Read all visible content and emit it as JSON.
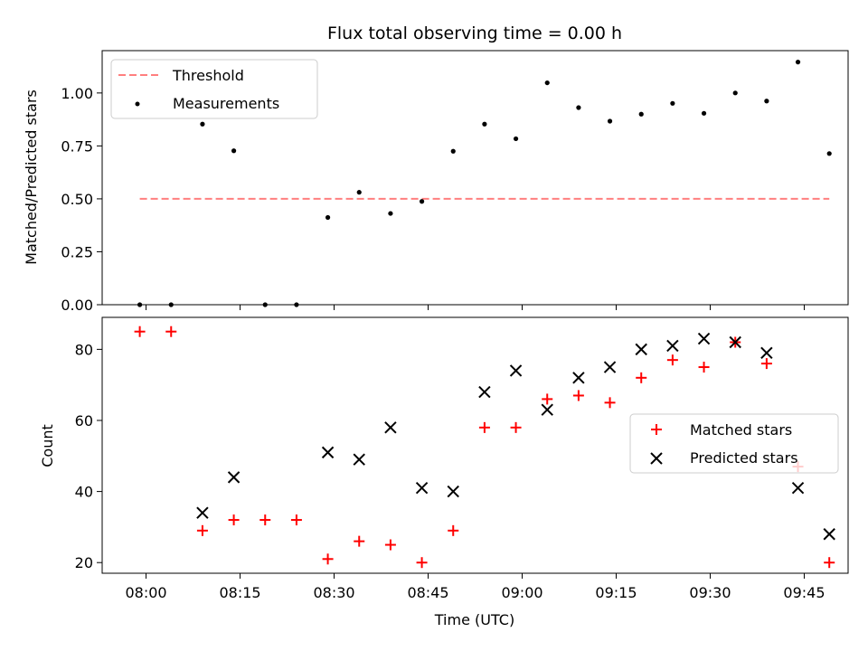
{
  "chart_data": [
    {
      "type": "scatter",
      "title": "Flux total observing time = 0.00 h",
      "xlabel": "",
      "ylabel": "Matched/Predicted stars",
      "ylim": [
        0,
        1.2
      ],
      "yticks": [
        "0.00",
        "0.25",
        "0.50",
        "0.75",
        "1.00"
      ],
      "grid": false,
      "legend_position": "upper-left",
      "threshold": {
        "name": "Threshold",
        "value": 0.5,
        "x_start": "07:59",
        "x_end": "09:49",
        "color": "#ff7f7f",
        "style": "dashed"
      },
      "series": [
        {
          "name": "Measurements",
          "marker": "dot",
          "color": "#000000",
          "x": [
            "07:59",
            "08:04",
            "08:09",
            "08:14",
            "08:19",
            "08:24",
            "08:29",
            "08:34",
            "08:39",
            "08:44",
            "08:49",
            "08:54",
            "08:59",
            "09:04",
            "09:09",
            "09:14",
            "09:19",
            "09:24",
            "09:29",
            "09:34",
            "09:39",
            "09:44",
            "09:49"
          ],
          "y": [
            0.0,
            0.0,
            0.853,
            0.727,
            0.0,
            0.0,
            0.412,
            0.531,
            0.431,
            0.488,
            0.725,
            0.853,
            0.784,
            1.048,
            0.931,
            0.867,
            0.9,
            0.951,
            0.904,
            1.0,
            0.962,
            1.146,
            0.714
          ]
        }
      ]
    },
    {
      "type": "scatter",
      "title": "",
      "xlabel": "Time (UTC)",
      "ylabel": "Count",
      "ylim": [
        17,
        89
      ],
      "yticks": [
        "20",
        "40",
        "60",
        "80"
      ],
      "xlim": [
        "07:53",
        "09:52"
      ],
      "xticks": [
        "08:00",
        "08:15",
        "08:30",
        "08:45",
        "09:00",
        "09:15",
        "09:30",
        "09:45"
      ],
      "grid": false,
      "legend_position": "center-right",
      "series": [
        {
          "name": "Matched stars",
          "marker": "plus",
          "color": "#ff0000",
          "x": [
            "07:59",
            "08:04",
            "08:09",
            "08:14",
            "08:19",
            "08:24",
            "08:29",
            "08:34",
            "08:39",
            "08:44",
            "08:49",
            "08:54",
            "08:59",
            "09:04",
            "09:09",
            "09:14",
            "09:19",
            "09:24",
            "09:29",
            "09:34",
            "09:39",
            "09:44",
            "09:49"
          ],
          "y": [
            85,
            85,
            29,
            32,
            32,
            32,
            21,
            26,
            25,
            20,
            29,
            58,
            58,
            66,
            67,
            65,
            72,
            77,
            75,
            82,
            76,
            47,
            20
          ]
        },
        {
          "name": "Predicted stars",
          "marker": "x",
          "color": "#000000",
          "x": [
            "08:09",
            "08:14",
            "08:29",
            "08:34",
            "08:39",
            "08:44",
            "08:49",
            "08:54",
            "08:59",
            "09:04",
            "09:09",
            "09:14",
            "09:19",
            "09:24",
            "09:29",
            "09:34",
            "09:39",
            "09:44",
            "09:49"
          ],
          "y": [
            34,
            44,
            51,
            49,
            58,
            41,
            40,
            68,
            74,
            63,
            72,
            75,
            80,
            81,
            83,
            82,
            79,
            41,
            28
          ]
        }
      ]
    }
  ]
}
